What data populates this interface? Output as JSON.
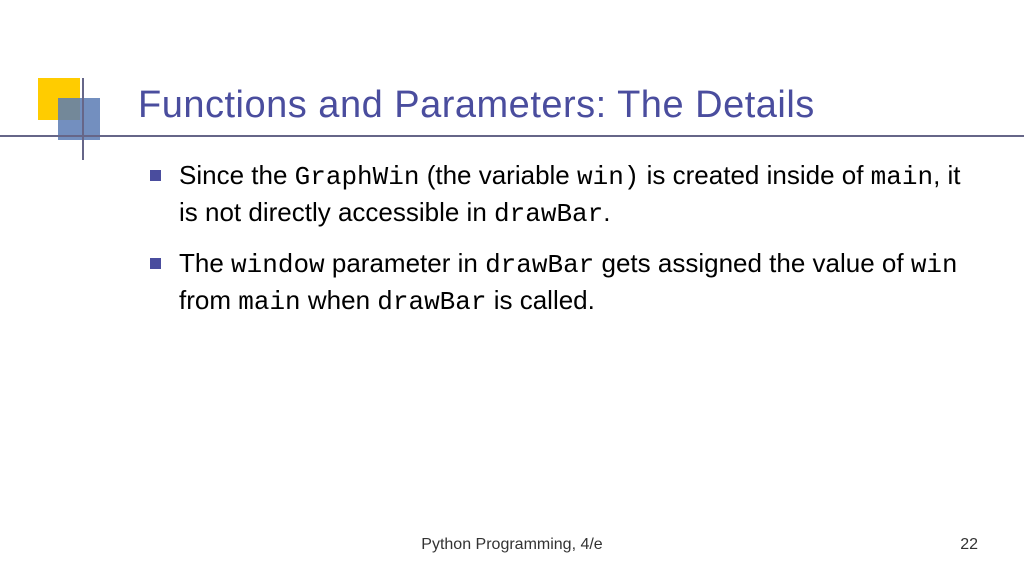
{
  "title": "Functions and Parameters: The Details",
  "bullets": [
    {
      "parts": [
        {
          "t": "Since the ",
          "mono": false
        },
        {
          "t": "GraphWin",
          "mono": true
        },
        {
          "t": " (the variable ",
          "mono": false
        },
        {
          "t": "win)",
          "mono": true
        },
        {
          "t": " is created inside of ",
          "mono": false
        },
        {
          "t": "main",
          "mono": true
        },
        {
          "t": ", it is not directly accessible in ",
          "mono": false
        },
        {
          "t": "drawBar",
          "mono": true
        },
        {
          "t": ".",
          "mono": false
        }
      ]
    },
    {
      "parts": [
        {
          "t": "The ",
          "mono": false
        },
        {
          "t": "window",
          "mono": true
        },
        {
          "t": " parameter in ",
          "mono": false
        },
        {
          "t": "drawBar",
          "mono": true
        },
        {
          "t": " gets assigned the value of ",
          "mono": false
        },
        {
          "t": "win",
          "mono": true
        },
        {
          "t": " from ",
          "mono": false
        },
        {
          "t": "main",
          "mono": true
        },
        {
          "t": " when ",
          "mono": false
        },
        {
          "t": "drawBar",
          "mono": true
        },
        {
          "t": " is called.",
          "mono": false
        }
      ]
    }
  ],
  "footer": {
    "book": "Python Programming, 4/e",
    "page": "22"
  },
  "colors": {
    "title": "#4a4d9e",
    "bullet": "#4a4d9e",
    "yellow": "#ffcc00",
    "blue": "#5b7bb4",
    "line": "#666688"
  }
}
